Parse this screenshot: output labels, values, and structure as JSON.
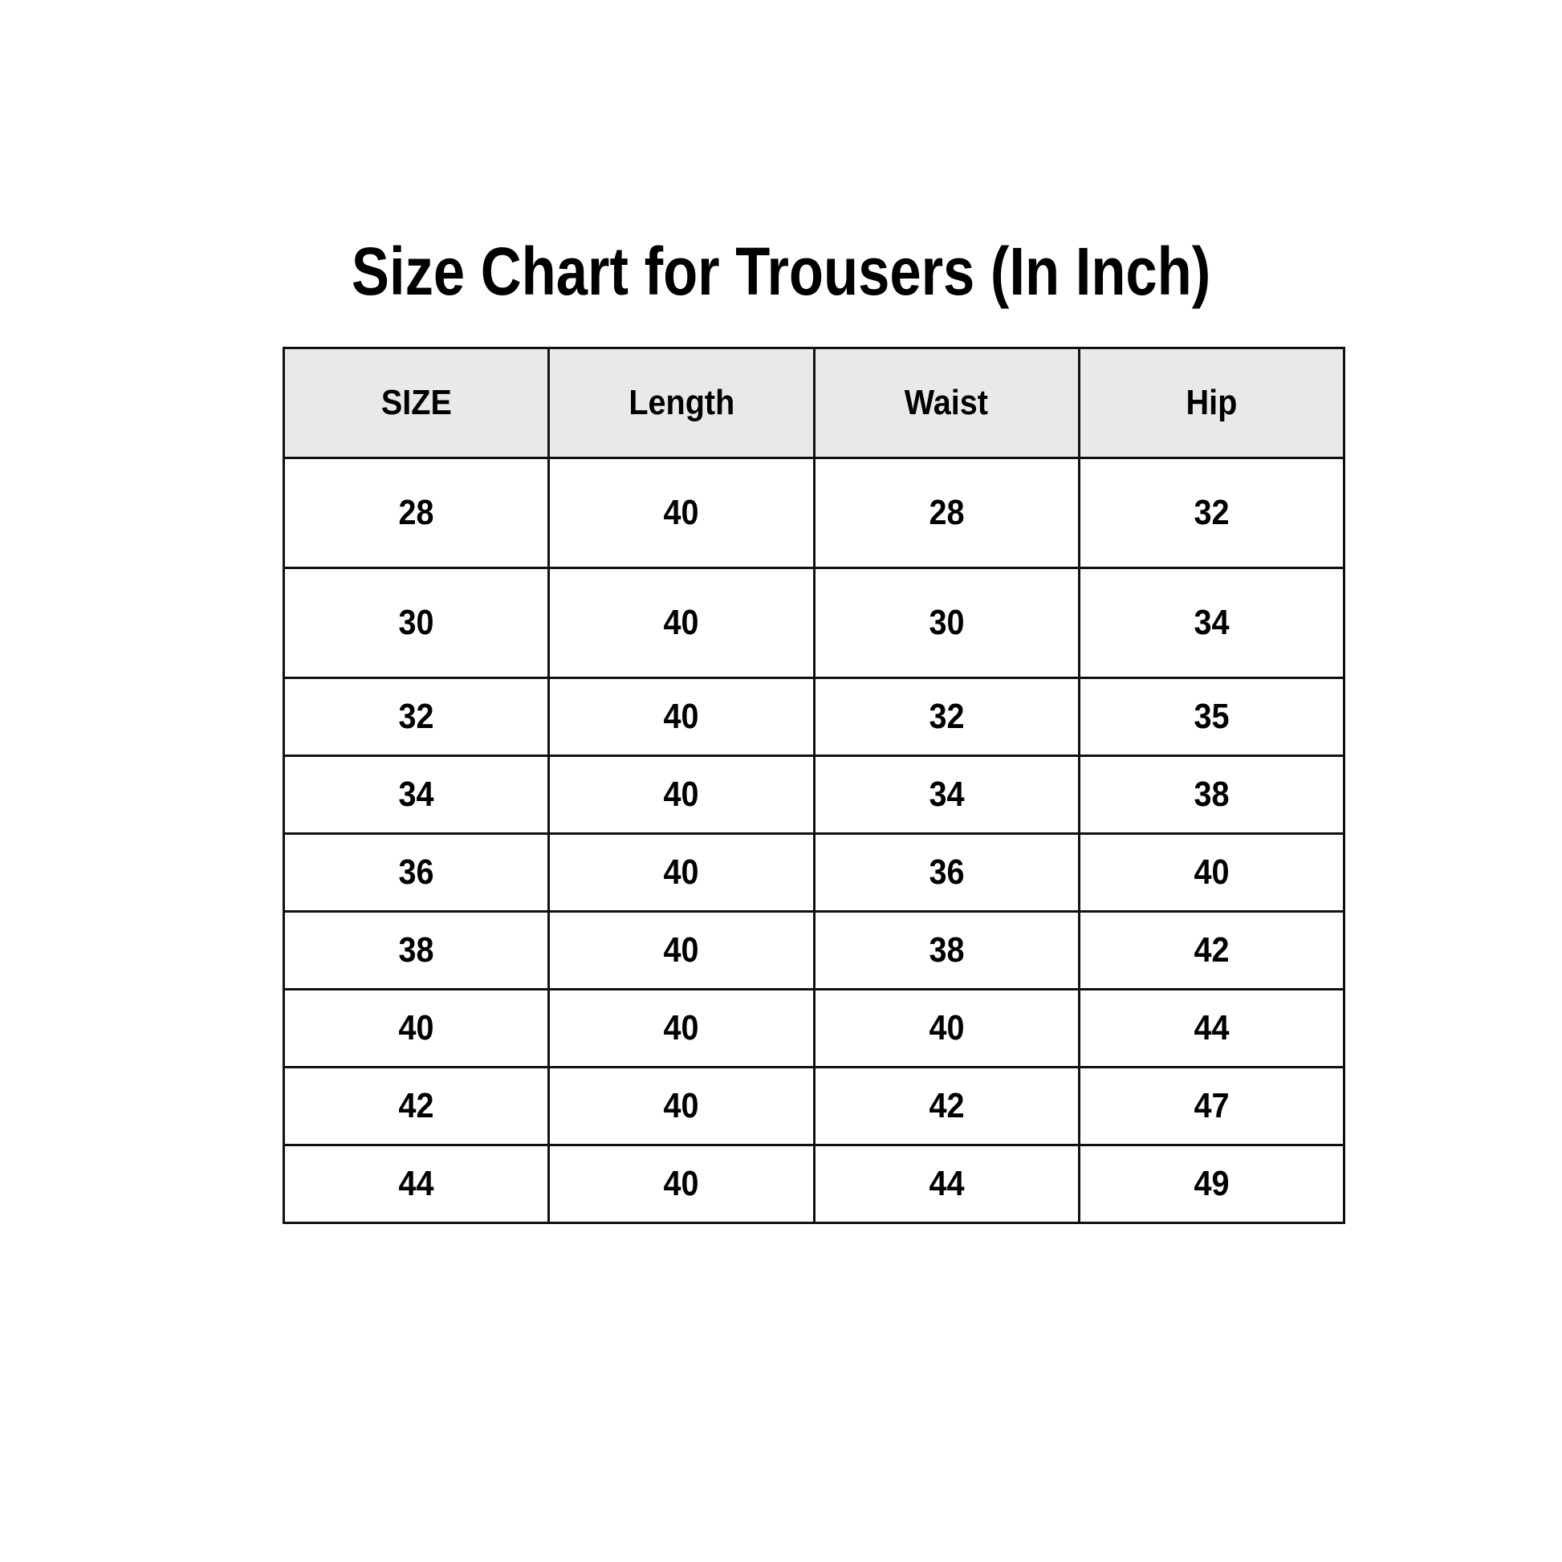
{
  "title": "Size Chart for Trousers (In Inch)",
  "table": {
    "headers": [
      "SIZE",
      "Length",
      "Waist",
      "Hip"
    ],
    "rows": [
      [
        "28",
        "40",
        "28",
        "32"
      ],
      [
        "30",
        "40",
        "30",
        "34"
      ],
      [
        "32",
        "40",
        "32",
        "35"
      ],
      [
        "34",
        "40",
        "34",
        "38"
      ],
      [
        "36",
        "40",
        "36",
        "40"
      ],
      [
        "38",
        "40",
        "38",
        "42"
      ],
      [
        "40",
        "40",
        "40",
        "44"
      ],
      [
        "42",
        "40",
        "42",
        "47"
      ],
      [
        "44",
        "40",
        "44",
        "49"
      ]
    ]
  },
  "colors": {
    "header_bg": "#e9e9e9",
    "border": "#111111"
  }
}
